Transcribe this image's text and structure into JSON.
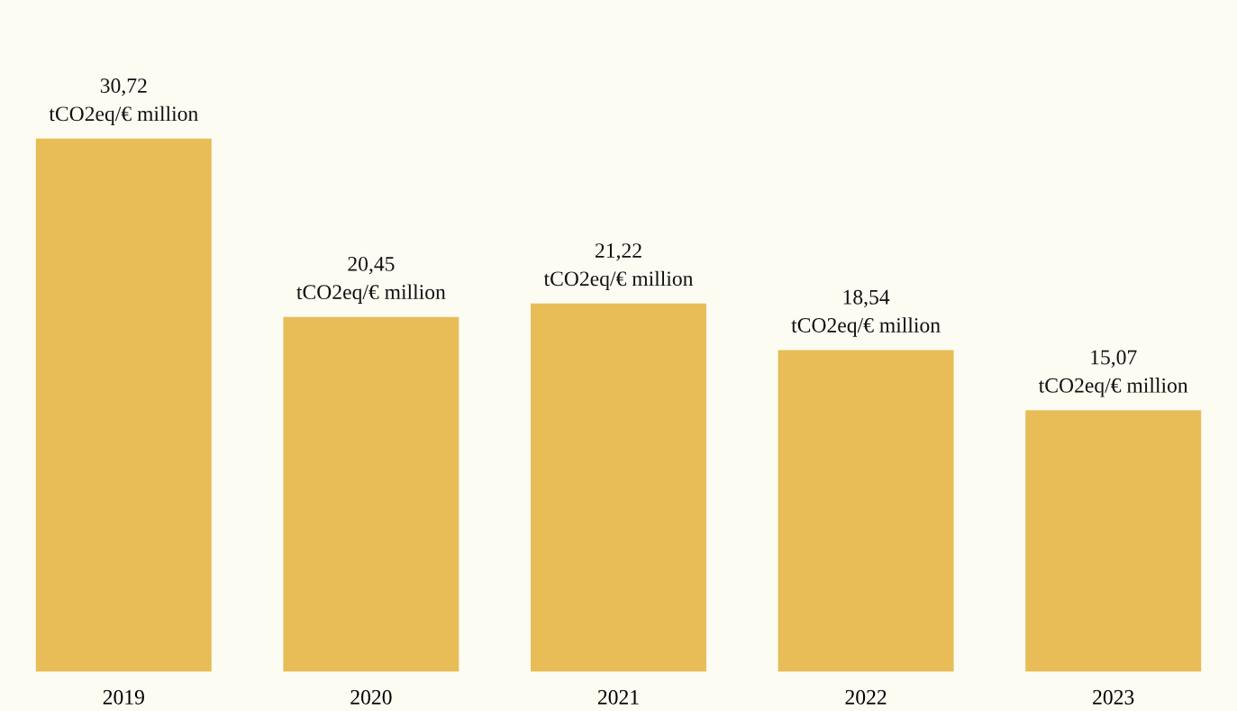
{
  "chart_data": {
    "type": "bar",
    "categories": [
      "2019",
      "2020",
      "2021",
      "2022",
      "2023"
    ],
    "values": [
      30.72,
      20.45,
      21.22,
      18.54,
      15.07
    ],
    "value_labels": [
      "30,72\ntCO2eq/€ million",
      "20,45\ntCO2eq/€ million",
      "21,22\ntCO2eq/€ million",
      "18,54\ntCO2eq/€ million",
      "15,07\ntCO2eq/€ million"
    ],
    "color": "#e8bd58",
    "grid": false,
    "legend": false
  }
}
